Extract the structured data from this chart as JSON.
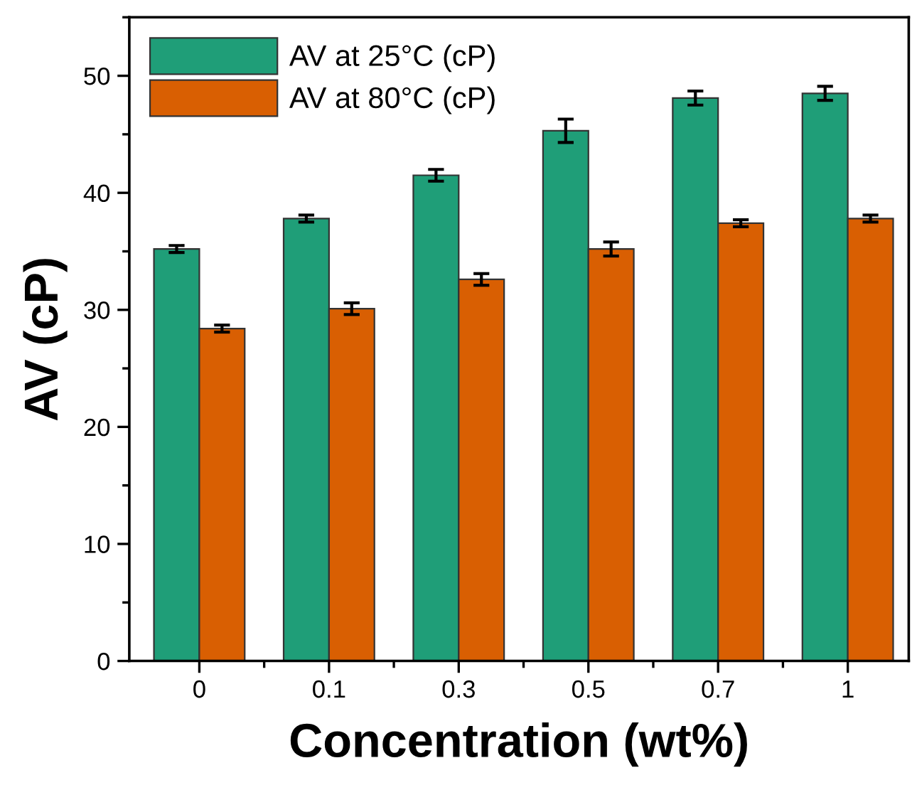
{
  "chart_data": {
    "type": "bar",
    "xlabel": "Concentration (wt%)",
    "ylabel": "AV (cP)",
    "categories": [
      "0",
      "0.1",
      "0.3",
      "0.5",
      "0.7",
      "1"
    ],
    "series": [
      {
        "name": "AV at 25°C (cP)",
        "color": "#1f9e78",
        "values": [
          35.2,
          37.8,
          41.5,
          45.3,
          48.1,
          48.5
        ],
        "errors": [
          0.3,
          0.3,
          0.5,
          1.0,
          0.6,
          0.6
        ]
      },
      {
        "name": "AV at 80°C (cP)",
        "color": "#d95f02",
        "values": [
          28.4,
          30.1,
          32.6,
          35.2,
          37.4,
          37.8
        ],
        "errors": [
          0.3,
          0.5,
          0.5,
          0.6,
          0.3,
          0.3
        ]
      }
    ],
    "ylim": [
      0,
      55
    ],
    "yticks": [
      0,
      10,
      20,
      30,
      40,
      50
    ],
    "grid": false,
    "legend": "top left"
  }
}
